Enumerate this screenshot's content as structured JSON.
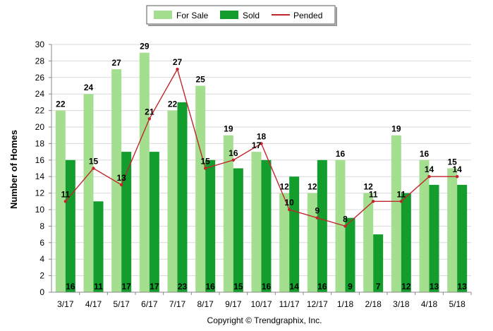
{
  "chart_data": {
    "type": "bar",
    "categories": [
      "3/17",
      "4/17",
      "5/17",
      "6/17",
      "7/17",
      "8/17",
      "9/17",
      "10/17",
      "11/17",
      "12/17",
      "1/18",
      "2/18",
      "3/18",
      "4/18",
      "5/18"
    ],
    "series": [
      {
        "name": "For Sale",
        "type": "bar",
        "color": "#a3df8f",
        "values": [
          22,
          24,
          27,
          29,
          22,
          25,
          19,
          17,
          12,
          12,
          16,
          12,
          19,
          16,
          15
        ]
      },
      {
        "name": "Sold",
        "type": "bar",
        "color": "#129d2c",
        "values": [
          16,
          11,
          17,
          17,
          23,
          16,
          15,
          16,
          14,
          16,
          9,
          7,
          12,
          13,
          13
        ]
      },
      {
        "name": "Pended",
        "type": "line",
        "color": "#c0272d",
        "values": [
          11,
          15,
          13,
          21,
          27,
          15,
          16,
          18,
          10,
          9,
          8,
          11,
          11,
          14,
          14
        ]
      }
    ],
    "ylabel": "Number of Homes",
    "ylim": [
      0,
      30
    ],
    "yticks": [
      0,
      2,
      4,
      6,
      8,
      10,
      12,
      14,
      16,
      18,
      20,
      22,
      24,
      26,
      28,
      30
    ],
    "grid": true,
    "legend_position": "top-center"
  },
  "copyright": "Copyright © Trendgraphix, Inc."
}
